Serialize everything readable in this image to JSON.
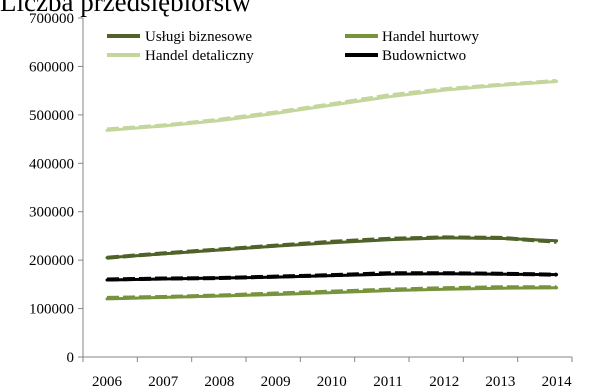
{
  "chart_data": {
    "type": "line",
    "title": "Liczba przedsiębiorstw",
    "xlabel": "",
    "ylabel": "",
    "x": [
      "2006",
      "2007",
      "2008",
      "2009",
      "2010",
      "2011",
      "2012",
      "2013",
      "2014"
    ],
    "ylim": [
      0,
      700000
    ],
    "yticks": [
      0,
      100000,
      200000,
      300000,
      400000,
      500000,
      600000,
      700000
    ],
    "ytick_labels": [
      "0",
      "100000",
      "200000",
      "300000",
      "400000",
      "500000",
      "600000",
      "700000"
    ],
    "grid": false,
    "legend_position": "top",
    "series": [
      {
        "name": "Usługi biznesowe",
        "color": "#4f6228",
        "values": [
          205000,
          214000,
          222000,
          230000,
          238000,
          244000,
          247000,
          246000,
          238000
        ],
        "trend": [
          205000,
          213000,
          221000,
          229000,
          236000,
          242000,
          246000,
          245000,
          240000
        ]
      },
      {
        "name": "Handel hurtowy",
        "color": "#77933c",
        "values": [
          122000,
          124000,
          127000,
          131000,
          135000,
          139000,
          142000,
          144000,
          144000
        ],
        "trend": [
          120000,
          123000,
          126000,
          129000,
          133000,
          137000,
          140000,
          142000,
          143000
        ]
      },
      {
        "name": "Handel detaliczny",
        "color": "#c3d69b",
        "values": [
          470000,
          478000,
          490000,
          505000,
          522000,
          540000,
          553000,
          562000,
          570000
        ],
        "trend": [
          468000,
          477000,
          488000,
          503000,
          520000,
          537000,
          551000,
          561000,
          569000
        ]
      },
      {
        "name": "Budownictwo",
        "color": "#000000",
        "values": [
          160000,
          162000,
          163000,
          166000,
          169000,
          173000,
          173000,
          172000,
          170000
        ],
        "trend": [
          159000,
          161000,
          163000,
          165000,
          168000,
          171000,
          172000,
          171000,
          170000
        ]
      }
    ]
  }
}
